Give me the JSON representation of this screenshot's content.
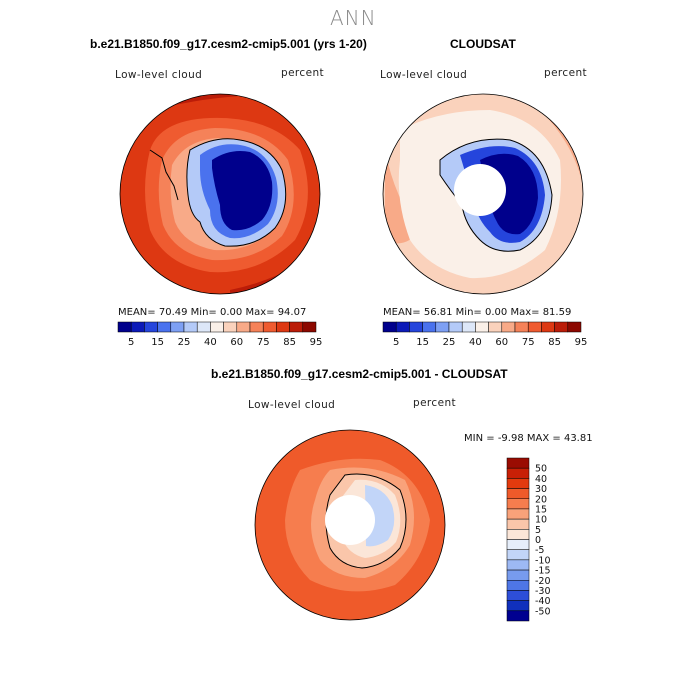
{
  "figure": {
    "title": "ANN"
  },
  "panels": [
    {
      "title": "b.e21.B1850.f09_g17.cesm2-cmip5.001 (yrs 1-20)",
      "left_label": "Low-level cloud",
      "right_label": "percent",
      "stats": {
        "mean_label": "MEAN=",
        "mean": "70.49",
        "min_label": "Min=",
        "min": "0.00",
        "max_label": "Max=",
        "max": "94.07"
      }
    },
    {
      "title": "CLOUDSAT",
      "left_label": "Low-level cloud",
      "right_label": "percent",
      "stats": {
        "mean_label": "MEAN=",
        "mean": "56.81",
        "min_label": "Min=",
        "min": "0.00",
        "max_label": "Max=",
        "max": "81.59"
      }
    },
    {
      "title": "b.e21.B1850.f09_g17.cesm2-cmip5.001 - CLOUDSAT",
      "left_label": "Low-level cloud",
      "right_label": "percent",
      "stats": {
        "min_label": "MIN =",
        "min": "-9.98",
        "max_label": "MAX =",
        "max": "43.81"
      }
    }
  ],
  "colorbar_abs": {
    "tick_labels": [
      "5",
      "15",
      "25",
      "40",
      "60",
      "75",
      "85",
      "95"
    ],
    "colors": [
      "#00008c",
      "#0c1ab8",
      "#2545dc",
      "#4a72ee",
      "#7ea0f4",
      "#b4caf8",
      "#dde7f8",
      "#faf0e8",
      "#fad2bc",
      "#f8aa88",
      "#f58259",
      "#ef5b30",
      "#dd3812",
      "#bb1c08",
      "#8c0800"
    ]
  },
  "colorbar_diff": {
    "tick_labels": [
      "50",
      "40",
      "30",
      "20",
      "15",
      "10",
      "5",
      "0",
      "-5",
      "-10",
      "-15",
      "-20",
      "-30",
      "-40",
      "-50"
    ],
    "colors": [
      "#9a0c02",
      "#c82006",
      "#e33a0e",
      "#ef5a2a",
      "#f67d4e",
      "#f9a27a",
      "#fac6aa",
      "#fbe6d8",
      "#e6eefa",
      "#c2d5f8",
      "#9db9f4",
      "#779bee",
      "#4e76e6",
      "#2d4ed8",
      "#1030bc",
      "#000090"
    ]
  }
}
